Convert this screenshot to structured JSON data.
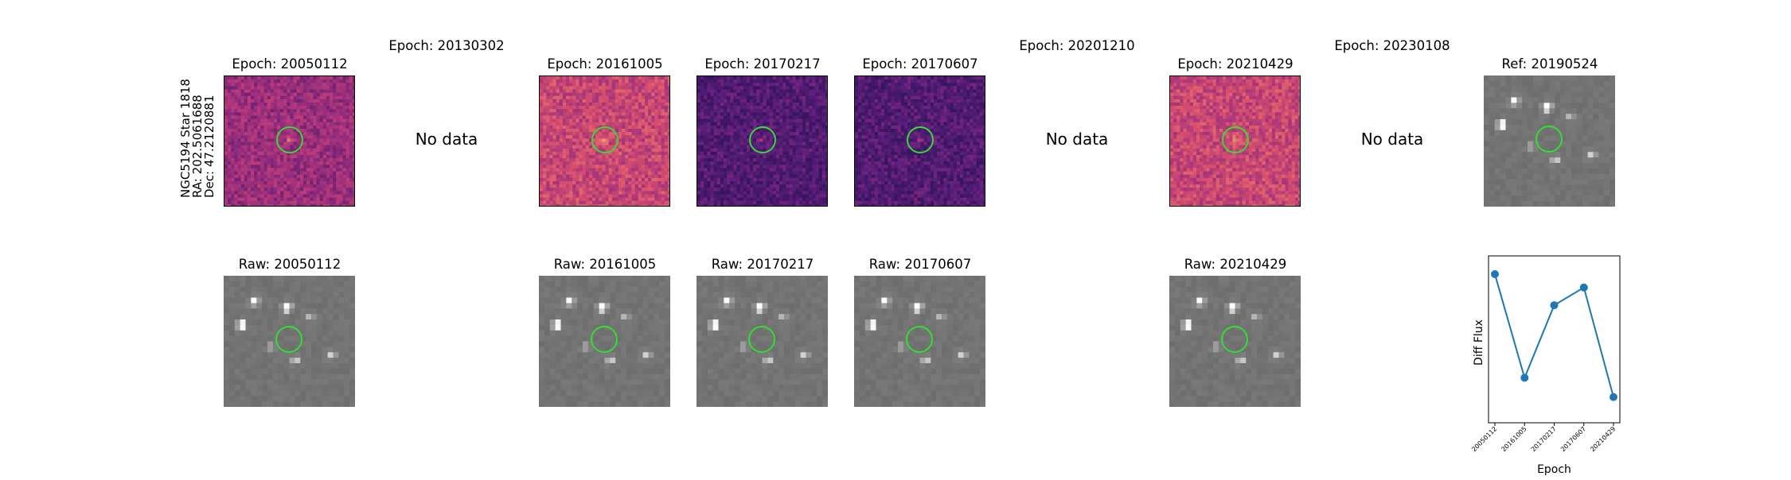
{
  "star": {
    "name": "NGC5194 Star 1818",
    "ra": "RA: 202.5061688",
    "dec": "Dec: 47.2120881"
  },
  "epochs_row": [
    {
      "title": "Epoch: 20050112",
      "has_data": true,
      "colormap": "magma-a"
    },
    {
      "title": "Epoch: 20130302",
      "has_data": false,
      "nodata": "No data"
    },
    {
      "title": "Epoch: 20161005",
      "has_data": true,
      "colormap": "magma-b"
    },
    {
      "title": "Epoch: 20170217",
      "has_data": true,
      "colormap": "magma-c"
    },
    {
      "title": "Epoch: 20170607",
      "has_data": true,
      "colormap": "magma-c"
    },
    {
      "title": "Epoch: 20201210",
      "has_data": false,
      "nodata": "No data"
    },
    {
      "title": "Epoch: 20210429",
      "has_data": true,
      "colormap": "magma-b"
    },
    {
      "title": "Epoch: 20230108",
      "has_data": false,
      "nodata": "No data"
    },
    {
      "title": "Ref: 20190524",
      "has_data": true,
      "colormap": "gray"
    }
  ],
  "raw_row": [
    {
      "title": "Raw: 20050112"
    },
    {
      "title": "Raw: 20161005"
    },
    {
      "title": "Raw: 20170217"
    },
    {
      "title": "Raw: 20170607"
    },
    {
      "title": "Raw: 20210429"
    }
  ],
  "colors": {
    "circle": "#33dd33",
    "line": "#1f77b4",
    "magma_low": "#2a0f52",
    "magma_mid": "#b5367a",
    "magma_high": "#f7a66b"
  },
  "chart_data": {
    "type": "line",
    "title": "",
    "xlabel": "Epoch",
    "ylabel": "Diff Flux",
    "categories": [
      "20050112",
      "20161005",
      "20170217",
      "20170607",
      "20210429"
    ],
    "values": [
      0.93,
      0.23,
      0.72,
      0.84,
      0.1
    ],
    "ylim": [
      0,
      1
    ],
    "grid": false,
    "y_ticks_shown": false
  }
}
